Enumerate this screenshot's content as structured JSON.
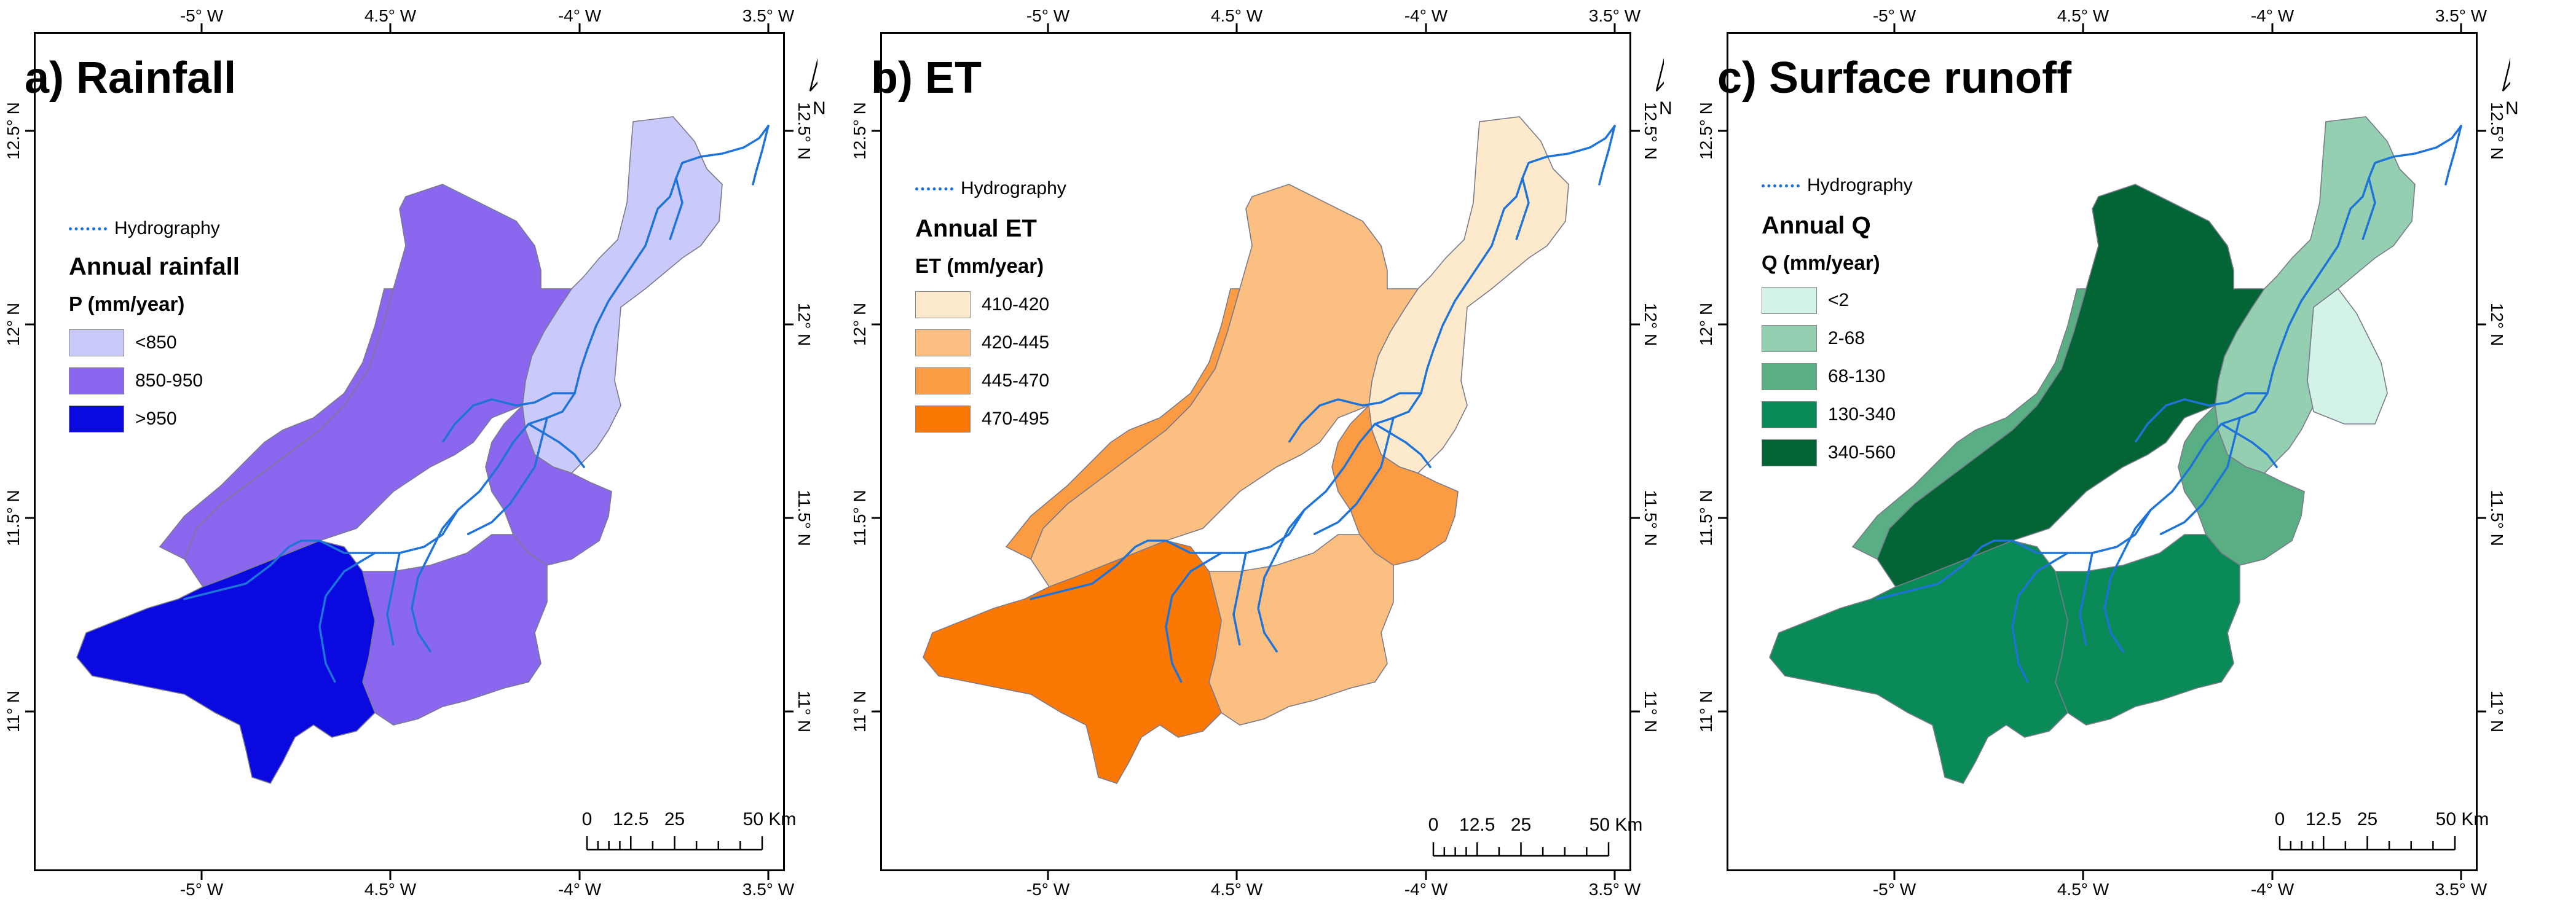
{
  "axes": {
    "lon_labels": [
      "-5° W",
      "4.5° W",
      "-4° W",
      "3.5° W"
    ],
    "lat_labels": [
      "12.5° N",
      "12° N",
      "11.5° N",
      "11° N"
    ]
  },
  "hydrography_label": "Hydrography",
  "hydrography_color": "#1e73d8",
  "north_arrow": {
    "label": "N",
    "icon": "north-arrow-icon"
  },
  "scalebar": {
    "labels": [
      "0",
      "12.5",
      "25",
      "50 Km"
    ]
  },
  "panels": [
    {
      "title": "a) Rainfall",
      "legend_title": "Annual rainfall",
      "legend_subtitle": "P (mm/year)",
      "classes": [
        {
          "label": "<850",
          "color": "#c9c9fa"
        },
        {
          "label": "850-950",
          "color": "#8b67f0"
        },
        {
          "label": ">950",
          "color": "#0a0ae0"
        }
      ],
      "zone_classes": {
        "north": 0,
        "central": 1,
        "west": 1,
        "east": 1,
        "southwest": 2,
        "south": 1
      }
    },
    {
      "title": "b) ET",
      "legend_title": "Annual ET",
      "legend_subtitle": "ET (mm/year)",
      "classes": [
        {
          "label": "410-420",
          "color": "#fde9cc"
        },
        {
          "label": "420-445",
          "color": "#fbbf82"
        },
        {
          "label": "445-470",
          "color": "#fb9c45"
        },
        {
          "label": "470-495",
          "color": "#fb7805"
        }
      ],
      "zone_classes": {
        "north": 0,
        "central": 1,
        "west": 2,
        "east": 2,
        "southwest": 3,
        "south": 1
      }
    },
    {
      "title": "c) Surface runoff",
      "legend_title": "Annual Q",
      "legend_subtitle": "Q (mm/year)",
      "classes": [
        {
          "label": "<2",
          "color": "#d3f3e6"
        },
        {
          "label": "2-68",
          "color": "#93cfb0"
        },
        {
          "label": "68-130",
          "color": "#5aae84"
        },
        {
          "label": "130-340",
          "color": "#0a8a57"
        },
        {
          "label": "340-560",
          "color": "#036536"
        }
      ],
      "zone_classes": {
        "north": 1,
        "central": 4,
        "west": 2,
        "east": 2,
        "southwest": 3,
        "south": 3,
        "neck": 0
      }
    }
  ]
}
